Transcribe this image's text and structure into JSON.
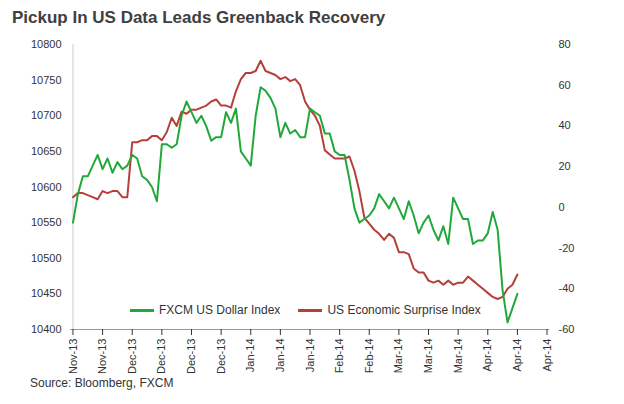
{
  "chart_data": {
    "type": "line",
    "title": "Pickup In US Data Leads Greenback Recovery",
    "caption": "Source: Bloomberg, FXCM",
    "categories": [
      "Nov-13",
      null,
      null,
      null,
      null,
      null,
      "Nov-13",
      null,
      null,
      null,
      null,
      null,
      "Dec-13",
      null,
      null,
      null,
      null,
      null,
      "Dec-13",
      null,
      null,
      null,
      null,
      null,
      "Dec-13",
      null,
      null,
      null,
      null,
      null,
      "Dec-13",
      null,
      null,
      null,
      null,
      null,
      "Jan-14",
      null,
      null,
      null,
      null,
      null,
      "Jan-14",
      null,
      null,
      null,
      null,
      null,
      "Jan-14",
      null,
      null,
      null,
      null,
      null,
      "Feb-14",
      null,
      null,
      null,
      null,
      null,
      "Feb-14",
      null,
      null,
      null,
      null,
      null,
      "Mar-14",
      null,
      null,
      null,
      null,
      null,
      "Mar-14",
      null,
      null,
      null,
      null,
      null,
      "Mar-14",
      null,
      null,
      null,
      null,
      null,
      "Apr-14",
      null,
      null,
      null,
      null,
      null,
      "Apr-14",
      null,
      null,
      null,
      null,
      null,
      "Apr-14"
    ],
    "series": [
      {
        "name": "FXCM US Dollar Index",
        "color": "#22a83a",
        "axis": "y",
        "values": [
          10550,
          10590,
          10615,
          10615,
          10630,
          10645,
          10625,
          10640,
          10620,
          10635,
          10625,
          10630,
          10645,
          10640,
          10615,
          10610,
          10600,
          10580,
          10660,
          10660,
          10655,
          10660,
          10700,
          10720,
          10705,
          10690,
          10700,
          10685,
          10665,
          10670,
          10670,
          10705,
          10690,
          10710,
          10650,
          10640,
          10630,
          10700,
          10740,
          10735,
          10725,
          10710,
          10670,
          10690,
          10675,
          10680,
          10670,
          10670,
          10710,
          10705,
          10700,
          10675,
          10675,
          10650,
          10645,
          10645,
          10610,
          10570,
          10550,
          10555,
          10560,
          10570,
          10590,
          10580,
          10570,
          10585,
          10570,
          10555,
          10580,
          10560,
          10535,
          10550,
          10560,
          10540,
          10525,
          10545,
          10520,
          10585,
          10570,
          10555,
          10555,
          10520,
          10525,
          10525,
          10535,
          10565,
          10540,
          10455,
          10410,
          10430,
          10450,
          null,
          null,
          null,
          null,
          null,
          null
        ]
      },
      {
        "name": "US Economic Surprise Index",
        "color": "#b5403a",
        "axis": "y2",
        "values": [
          5,
          7,
          7,
          6,
          5,
          4,
          8,
          7,
          8,
          8,
          5,
          5,
          32,
          32,
          33,
          33,
          35,
          35,
          33,
          37,
          44,
          40,
          47,
          46,
          48,
          48,
          49,
          50,
          52,
          53,
          50,
          50,
          49,
          57,
          63,
          66,
          66,
          67,
          72,
          67,
          66,
          65,
          63,
          64,
          62,
          63,
          60,
          52,
          48,
          45,
          40,
          28,
          26,
          24,
          24,
          24,
          25,
          18,
          8,
          -5,
          -8,
          -11,
          -13,
          -16,
          -13,
          -15,
          -22,
          -22,
          -23,
          -30,
          -32,
          -32,
          -36,
          -37,
          -36,
          -38,
          -36,
          -38,
          -37,
          -37,
          -34,
          -36,
          -38,
          -40,
          -42,
          -44,
          -45,
          -44,
          -40,
          -38,
          -33,
          null,
          null,
          null,
          null,
          null,
          null
        ]
      }
    ],
    "ylim": [
      10400,
      10800
    ],
    "yticks": [
      10400,
      10450,
      10500,
      10550,
      10600,
      10650,
      10700,
      10750,
      10800
    ],
    "y2lim": [
      -60,
      80
    ],
    "y2ticks": [
      -60,
      -40,
      -20,
      0,
      20,
      40,
      60,
      80
    ],
    "legend": "bottom",
    "grid": false
  }
}
